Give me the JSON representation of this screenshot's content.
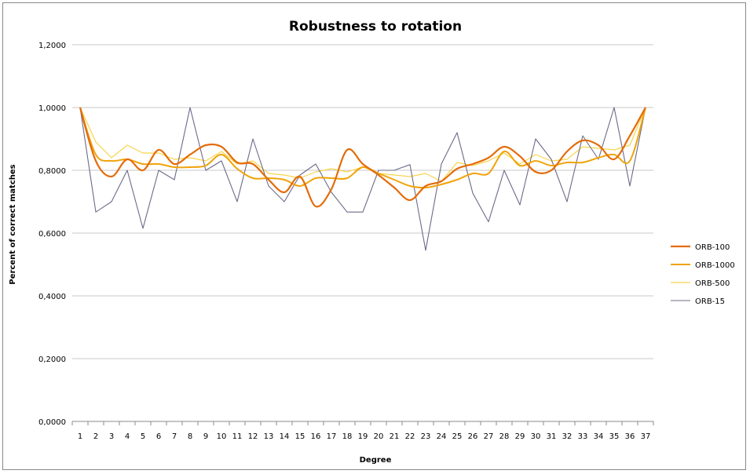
{
  "chart_data": {
    "type": "line",
    "title": "Robustness to rotation",
    "xlabel": "Degree",
    "ylabel": "Percent of correct matches",
    "x": [
      1,
      2,
      3,
      4,
      5,
      6,
      7,
      8,
      9,
      10,
      11,
      12,
      13,
      14,
      15,
      16,
      17,
      18,
      19,
      20,
      21,
      22,
      23,
      24,
      25,
      26,
      27,
      28,
      29,
      30,
      31,
      32,
      33,
      34,
      35,
      36,
      37
    ],
    "ylim": [
      0,
      1.2
    ],
    "yticks": [
      0,
      0.2,
      0.4,
      0.6,
      0.8,
      1.0,
      1.2
    ],
    "ytick_labels": [
      "0,0000",
      "0,2000",
      "0,4000",
      "0,6000",
      "0,8000",
      "1,0000",
      "1,2000"
    ],
    "grid": "horizontal",
    "legend_position": "right",
    "series": [
      {
        "name": "ORB-100",
        "color": "#e46c0a",
        "line_width": 2.2,
        "smooth": true,
        "values": [
          1.0,
          0.83,
          0.78,
          0.835,
          0.8,
          0.865,
          0.82,
          0.85,
          0.88,
          0.875,
          0.825,
          0.82,
          0.77,
          0.73,
          0.78,
          0.685,
          0.74,
          0.865,
          0.82,
          0.785,
          0.745,
          0.705,
          0.75,
          0.765,
          0.805,
          0.82,
          0.84,
          0.875,
          0.845,
          0.795,
          0.8,
          0.86,
          0.895,
          0.88,
          0.835,
          0.91,
          1.0
        ]
      },
      {
        "name": "ORB-1000",
        "color": "#f0a30a",
        "line_width": 2.0,
        "smooth": true,
        "values": [
          1.0,
          0.85,
          0.83,
          0.835,
          0.82,
          0.82,
          0.81,
          0.81,
          0.815,
          0.85,
          0.805,
          0.775,
          0.775,
          0.77,
          0.75,
          0.775,
          0.775,
          0.775,
          0.81,
          0.79,
          0.77,
          0.75,
          0.745,
          0.755,
          0.77,
          0.79,
          0.79,
          0.86,
          0.815,
          0.83,
          0.815,
          0.825,
          0.825,
          0.84,
          0.85,
          0.83,
          1.0
        ]
      },
      {
        "name": "ORB-500",
        "color": "#f7d44c",
        "line_width": 1.2,
        "smooth": false,
        "values": [
          1.0,
          0.89,
          0.84,
          0.88,
          0.855,
          0.855,
          0.835,
          0.84,
          0.83,
          0.86,
          0.82,
          0.83,
          0.79,
          0.785,
          0.775,
          0.795,
          0.805,
          0.795,
          0.81,
          0.79,
          0.785,
          0.78,
          0.79,
          0.765,
          0.825,
          0.815,
          0.83,
          0.855,
          0.82,
          0.85,
          0.83,
          0.835,
          0.875,
          0.87,
          0.865,
          0.88,
          1.0
        ]
      },
      {
        "name": "ORB-15",
        "color": "#6b6b8a",
        "line_width": 1.1,
        "smooth": false,
        "values": [
          1.0,
          0.667,
          0.7,
          0.8,
          0.615,
          0.8,
          0.77,
          1.0,
          0.8,
          0.83,
          0.7,
          0.9,
          0.75,
          0.7,
          0.785,
          0.82,
          0.73,
          0.667,
          0.667,
          0.8,
          0.8,
          0.818,
          0.545,
          0.82,
          0.92,
          0.727,
          0.636,
          0.8,
          0.69,
          0.9,
          0.835,
          0.7,
          0.91,
          0.835,
          1.0,
          0.75,
          1.0
        ]
      }
    ]
  }
}
